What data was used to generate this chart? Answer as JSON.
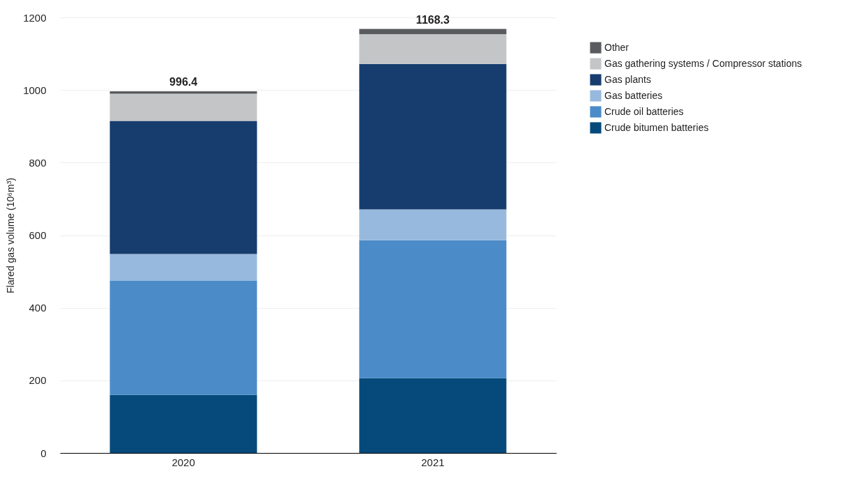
{
  "chart_data": {
    "type": "bar",
    "stacked": true,
    "ylabel": "Flared gas volume (10⁶m³)",
    "categories": [
      "2020",
      "2021"
    ],
    "series": [
      {
        "name": "Crude bitumen batteries",
        "color": "#054a7a",
        "values": [
          160,
          206
        ]
      },
      {
        "name": "Crude oil batteries",
        "color": "#4b8bc8",
        "values": [
          315,
          380
        ]
      },
      {
        "name": "Gas batteries",
        "color": "#97b9de",
        "values": [
          73,
          85
        ]
      },
      {
        "name": "Gas plants",
        "color": "#163d6e",
        "values": [
          367,
          401
        ]
      },
      {
        "name": "Gas gathering systems / Compressor stations",
        "color": "#c4c5c7",
        "values": [
          75,
          82
        ]
      },
      {
        "name": "Other",
        "color": "#5a5b5e",
        "values": [
          6.4,
          14.3
        ]
      }
    ],
    "totals": [
      "996.4",
      "1168.3"
    ],
    "ylim": [
      0,
      1200
    ],
    "yticks": [
      0,
      200,
      400,
      600,
      800,
      1000,
      1200
    ],
    "grid": "y",
    "legend": "top right"
  }
}
